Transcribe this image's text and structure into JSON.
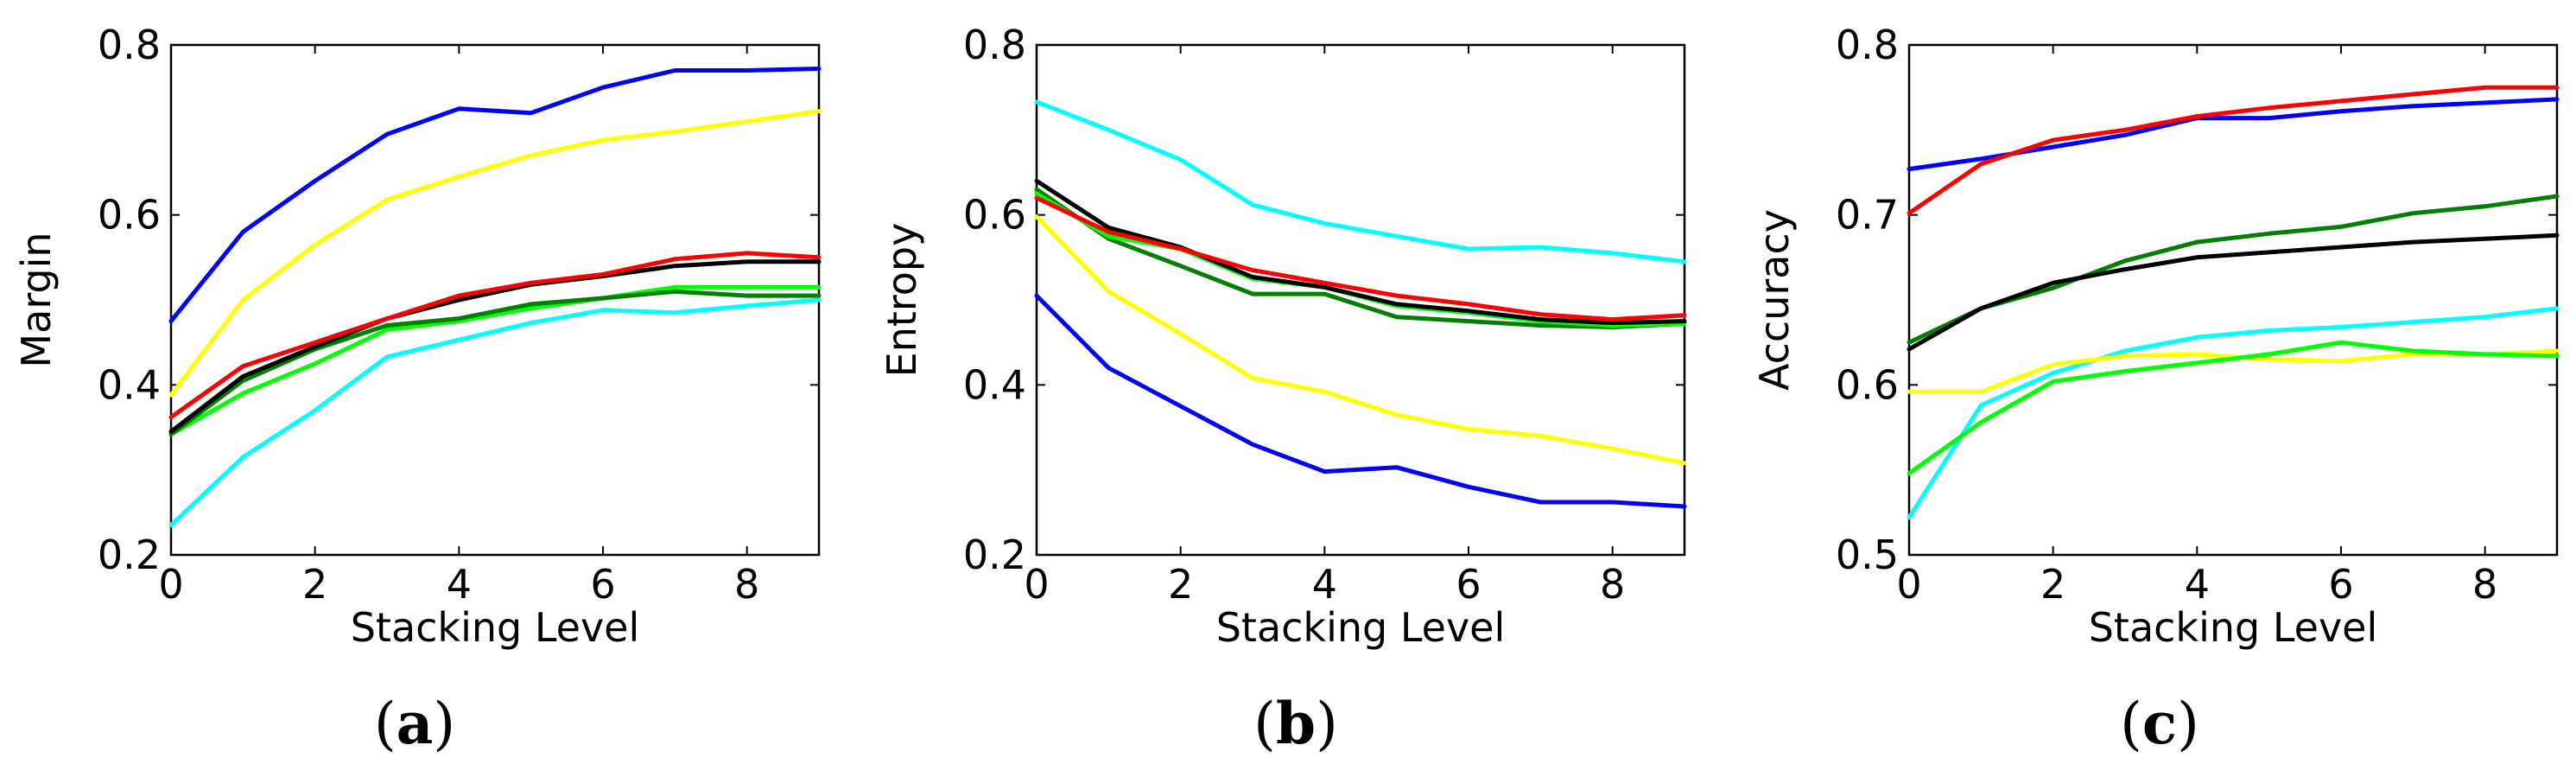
{
  "chart_data": [
    {
      "type": "line",
      "panel": "(a)",
      "xlabel": "Stacking Level",
      "ylabel": "Margin",
      "xlim": [
        0,
        9
      ],
      "ylim": [
        0.2,
        0.8
      ],
      "xticks": [
        "0",
        "2",
        "4",
        "6",
        "8"
      ],
      "yticks": [
        "0.2",
        "0.4",
        "0.6",
        "0.8"
      ],
      "x": [
        0,
        1,
        2,
        3,
        4,
        5,
        6,
        7,
        8,
        9
      ],
      "series": [
        {
          "name": "cyan",
          "color": "#00ffff",
          "values": [
            0.235,
            0.315,
            0.37,
            0.433,
            0.453,
            0.473,
            0.488,
            0.485,
            0.493,
            0.5
          ]
        },
        {
          "name": "green",
          "color": "#00ff00",
          "values": [
            0.342,
            0.39,
            0.425,
            0.465,
            0.475,
            0.49,
            0.502,
            0.515,
            0.515,
            0.515
          ]
        },
        {
          "name": "darkgreen",
          "color": "#007f00",
          "values": [
            0.342,
            0.405,
            0.442,
            0.47,
            0.478,
            0.495,
            0.502,
            0.51,
            0.505,
            0.505
          ]
        },
        {
          "name": "black",
          "color": "#000000",
          "values": [
            0.345,
            0.41,
            0.445,
            0.478,
            0.5,
            0.518,
            0.528,
            0.54,
            0.545,
            0.545
          ]
        },
        {
          "name": "red",
          "color": "#ff0000",
          "values": [
            0.362,
            0.422,
            0.45,
            0.478,
            0.505,
            0.52,
            0.53,
            0.548,
            0.555,
            0.55
          ]
        },
        {
          "name": "yellow",
          "color": "#ffff00",
          "values": [
            0.388,
            0.5,
            0.565,
            0.618,
            0.645,
            0.67,
            0.688,
            0.698,
            0.71,
            0.722
          ]
        },
        {
          "name": "blue",
          "color": "#0000ff",
          "values": [
            0.475,
            0.58,
            0.64,
            0.695,
            0.725,
            0.72,
            0.75,
            0.77,
            0.77,
            0.772
          ]
        }
      ]
    },
    {
      "type": "line",
      "panel": "(b)",
      "xlabel": "Stacking Level",
      "ylabel": "Entropy",
      "xlim": [
        0,
        9
      ],
      "ylim": [
        0.2,
        0.8
      ],
      "xticks": [
        "0",
        "2",
        "4",
        "6",
        "8"
      ],
      "yticks": [
        "0.2",
        "0.4",
        "0.6",
        "0.8"
      ],
      "x": [
        0,
        1,
        2,
        3,
        4,
        5,
        6,
        7,
        8,
        9
      ],
      "series": [
        {
          "name": "blue",
          "color": "#0000ff",
          "values": [
            0.505,
            0.42,
            0.375,
            0.33,
            0.298,
            0.303,
            0.28,
            0.262,
            0.262,
            0.257
          ]
        },
        {
          "name": "yellow",
          "color": "#ffff00",
          "values": [
            0.598,
            0.51,
            0.46,
            0.408,
            0.392,
            0.365,
            0.348,
            0.34,
            0.325,
            0.308
          ]
        },
        {
          "name": "darkgreen",
          "color": "#007f00",
          "values": [
            0.63,
            0.572,
            0.54,
            0.507,
            0.507,
            0.48,
            0.475,
            0.47,
            0.468,
            0.472
          ]
        },
        {
          "name": "green",
          "color": "#00ff00",
          "values": [
            0.625,
            0.575,
            0.56,
            0.525,
            0.515,
            0.493,
            0.485,
            0.475,
            0.47,
            0.472
          ]
        },
        {
          "name": "black",
          "color": "#000000",
          "values": [
            0.64,
            0.585,
            0.562,
            0.527,
            0.515,
            0.495,
            0.487,
            0.477,
            0.473,
            0.475
          ]
        },
        {
          "name": "red",
          "color": "#ff0000",
          "values": [
            0.62,
            0.58,
            0.56,
            0.535,
            0.52,
            0.505,
            0.495,
            0.483,
            0.477,
            0.482
          ]
        },
        {
          "name": "cyan",
          "color": "#00ffff",
          "values": [
            0.733,
            0.7,
            0.665,
            0.612,
            0.59,
            0.575,
            0.56,
            0.562,
            0.555,
            0.545
          ]
        }
      ]
    },
    {
      "type": "line",
      "panel": "(c)",
      "xlabel": "Stacking Level",
      "ylabel": "Accuracy",
      "xlim": [
        0,
        9
      ],
      "ylim": [
        0.5,
        0.8
      ],
      "xticks": [
        "0",
        "2",
        "4",
        "6",
        "8"
      ],
      "yticks": [
        "0.5",
        "0.6",
        "0.7",
        "0.8"
      ],
      "x": [
        0,
        1,
        2,
        3,
        4,
        5,
        6,
        7,
        8,
        9
      ],
      "series": [
        {
          "name": "cyan",
          "color": "#00ffff",
          "values": [
            0.522,
            0.588,
            0.607,
            0.62,
            0.628,
            0.632,
            0.634,
            0.637,
            0.64,
            0.645
          ]
        },
        {
          "name": "yellow",
          "color": "#ffff00",
          "values": [
            0.596,
            0.596,
            0.612,
            0.617,
            0.618,
            0.615,
            0.614,
            0.618,
            0.618,
            0.62
          ]
        },
        {
          "name": "green",
          "color": "#00ff00",
          "values": [
            0.548,
            0.578,
            0.602,
            0.608,
            0.613,
            0.618,
            0.625,
            0.62,
            0.618,
            0.617
          ]
        },
        {
          "name": "darkgreen",
          "color": "#007f00",
          "values": [
            0.625,
            0.645,
            0.657,
            0.673,
            0.684,
            0.689,
            0.693,
            0.701,
            0.705,
            0.711
          ]
        },
        {
          "name": "black",
          "color": "#000000",
          "values": [
            0.621,
            0.645,
            0.66,
            0.668,
            0.675,
            0.678,
            0.681,
            0.684,
            0.686,
            0.688
          ]
        },
        {
          "name": "blue",
          "color": "#0000ff",
          "values": [
            0.727,
            0.733,
            0.74,
            0.747,
            0.757,
            0.757,
            0.761,
            0.764,
            0.766,
            0.768
          ]
        },
        {
          "name": "red",
          "color": "#ff0000",
          "values": [
            0.701,
            0.73,
            0.744,
            0.75,
            0.758,
            0.763,
            0.767,
            0.771,
            0.775,
            0.775
          ]
        }
      ]
    }
  ],
  "labels": {
    "a": {
      "open": "(",
      "letter": "a",
      "close": ")"
    },
    "b": {
      "open": "(",
      "letter": "b",
      "close": ")"
    },
    "c": {
      "open": "(",
      "letter": "c",
      "close": ")"
    }
  }
}
